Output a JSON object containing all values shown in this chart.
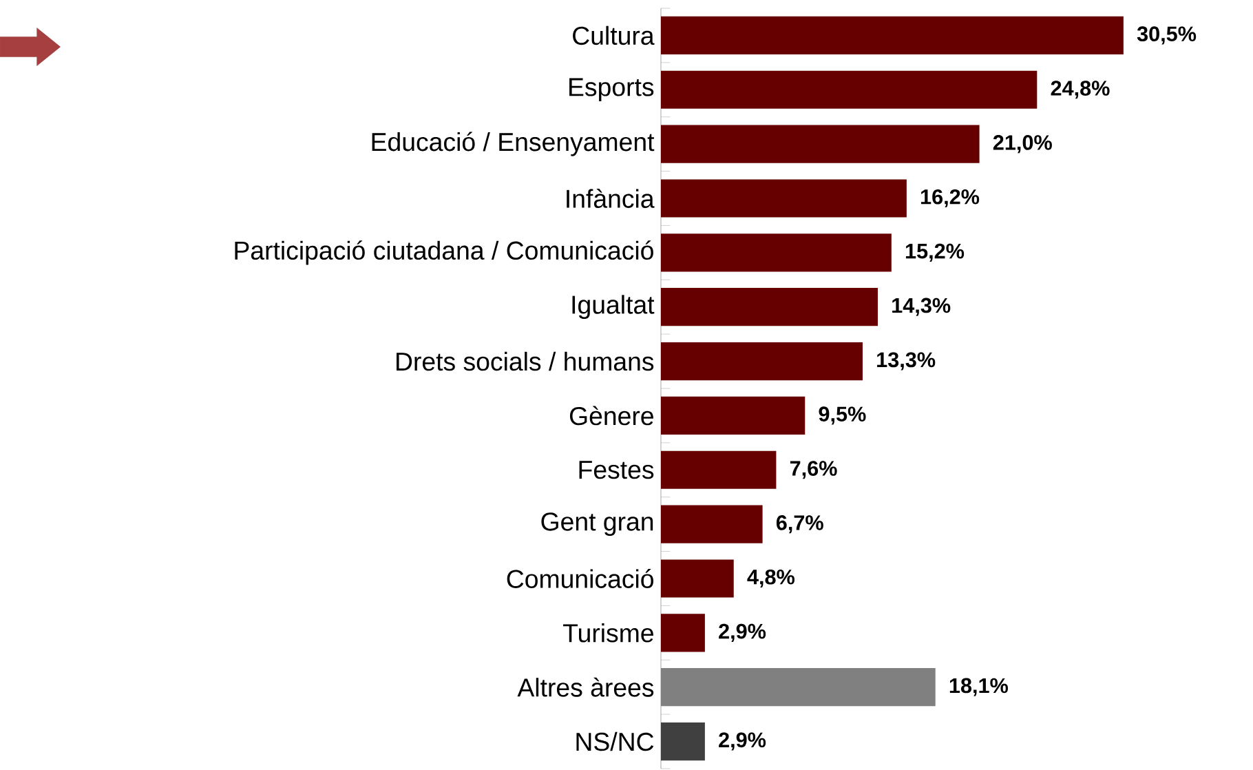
{
  "chart_data": {
    "type": "bar",
    "orientation": "horizontal",
    "categories": [
      "Cultura",
      "Esports",
      "Educació / Ensenyament",
      "Infància",
      "Participació ciutadana / Comunicació",
      "Igualtat",
      "Drets socials / humans",
      "Gènere",
      "Festes",
      "Gent gran",
      "Comunicació",
      "Turisme",
      "Altres àrees",
      "NS/NC"
    ],
    "values": [
      30.5,
      24.8,
      21.0,
      16.2,
      15.2,
      14.3,
      13.3,
      9.5,
      7.6,
      6.7,
      4.8,
      2.9,
      18.1,
      2.9
    ],
    "value_labels": [
      "30,5%",
      "24,8%",
      "21,0%",
      "16,2%",
      "15,2%",
      "14,3%",
      "13,3%",
      "9,5%",
      "7,6%",
      "6,7%",
      "4,8%",
      "2,9%",
      "18,1%",
      "2,9%"
    ],
    "colors": [
      "#660000",
      "#660000",
      "#660000",
      "#660000",
      "#660000",
      "#660000",
      "#660000",
      "#660000",
      "#660000",
      "#660000",
      "#660000",
      "#660000",
      "#808080",
      "#404040"
    ],
    "relative": false
  }
}
